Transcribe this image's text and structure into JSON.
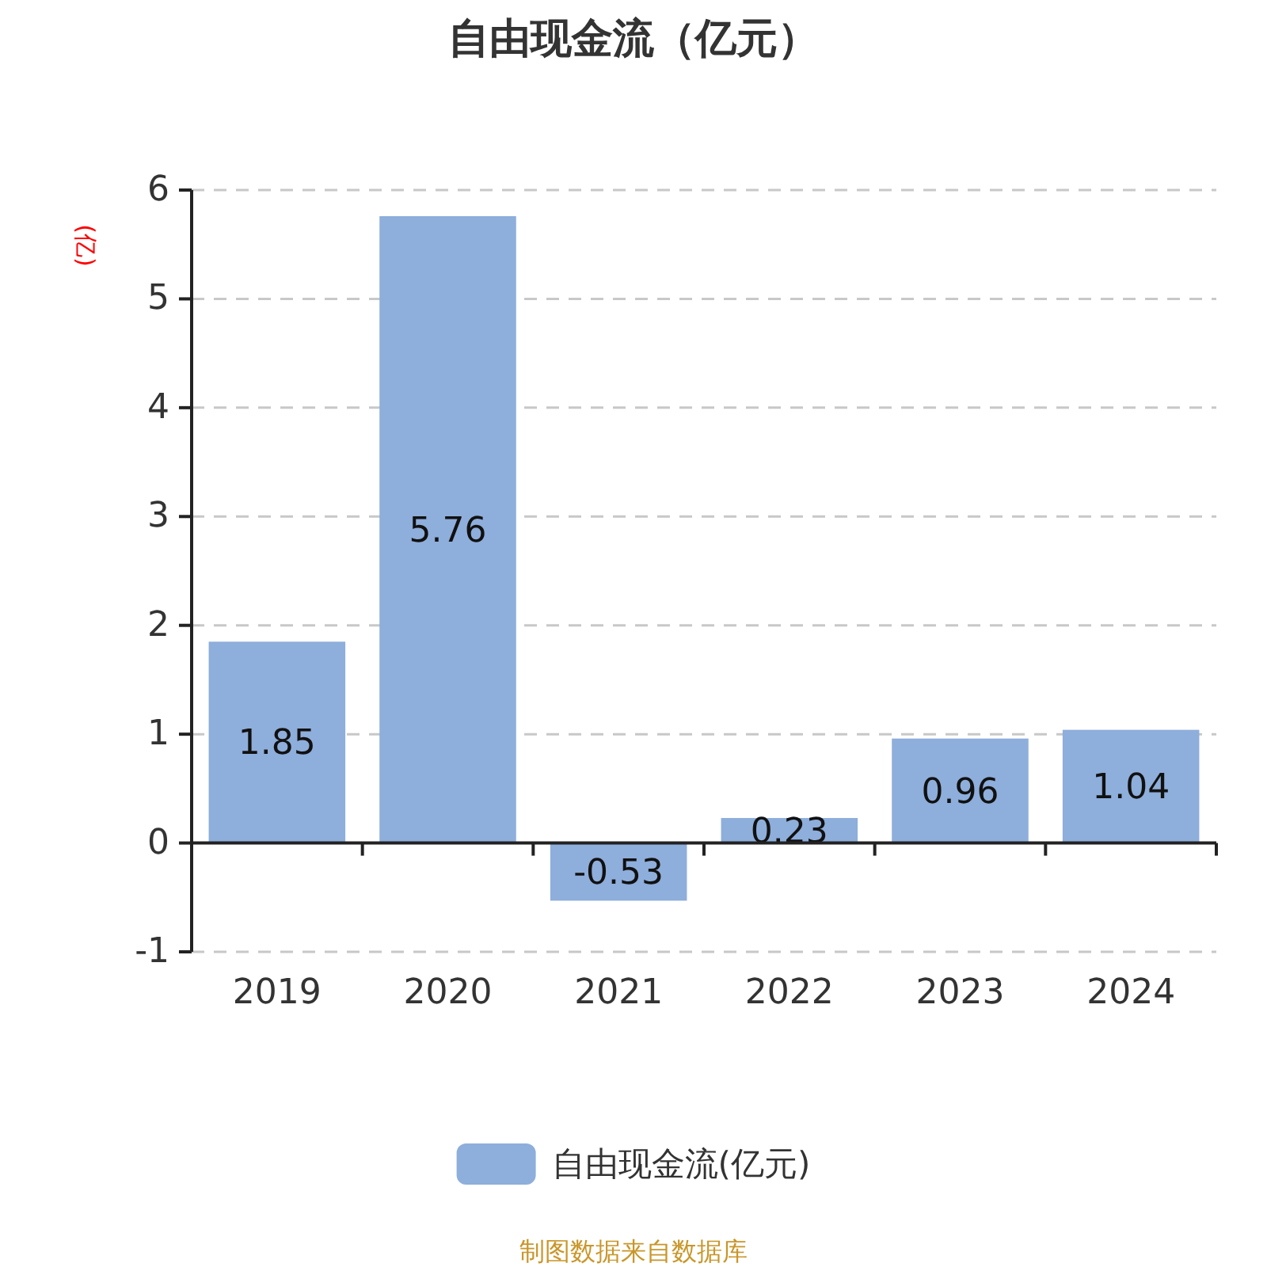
{
  "chart_data": {
    "type": "bar",
    "title": "自由现金流（亿元）",
    "ylabel": "(亿)",
    "categories": [
      "2019",
      "2020",
      "2021",
      "2022",
      "2023",
      "2024"
    ],
    "series": [
      {
        "name": "自由现金流(亿元)",
        "color": "#8eaedb",
        "values": [
          1.85,
          5.76,
          -0.53,
          0.23,
          0.96,
          1.04
        ]
      }
    ],
    "ylim": [
      -1,
      6
    ],
    "yticks": [
      -1,
      0,
      1,
      2,
      3,
      4,
      5,
      6
    ],
    "grid": "y",
    "legend": "bottom",
    "data_labels": true,
    "annotations": [
      "制图数据来自数据库"
    ]
  }
}
